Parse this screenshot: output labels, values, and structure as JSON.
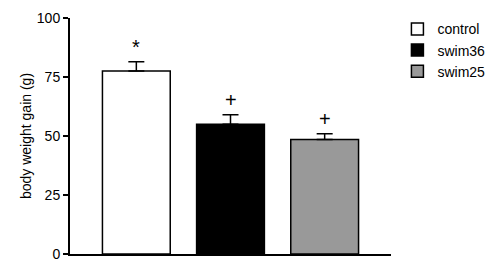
{
  "chart_data": {
    "type": "bar",
    "y_label": "body weight gain (g)",
    "categories": [
      null
    ],
    "series": [
      {
        "name": "control",
        "color": "#ffffff",
        "values": [
          77.5
        ],
        "errors": [
          4
        ]
      },
      {
        "name": "swim36",
        "color": "#000000",
        "values": [
          55
        ],
        "errors": [
          4
        ]
      },
      {
        "name": "swim25",
        "color": "#999999",
        "values": [
          48.5
        ],
        "errors": [
          2.5
        ]
      }
    ],
    "annotations": [
      {
        "series": "control",
        "text": "*"
      },
      {
        "series": "swim36",
        "text": "+"
      },
      {
        "series": "swim25",
        "text": "+"
      }
    ],
    "ylim": [
      0,
      100
    ],
    "yticks": [
      0,
      25,
      50,
      75,
      100
    ],
    "grid": false,
    "legend": "top right",
    "tick_labels": "y"
  }
}
